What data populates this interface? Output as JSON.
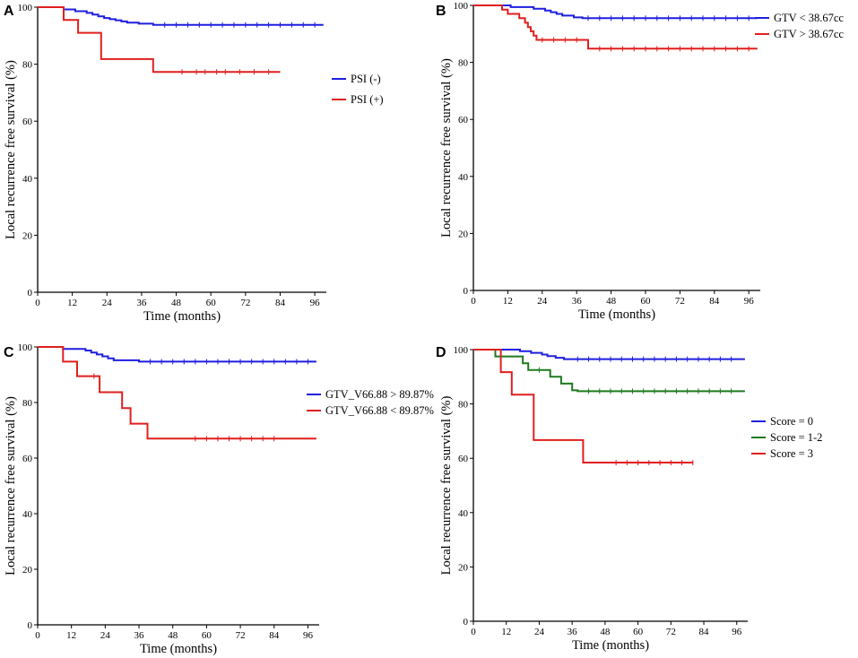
{
  "figure": {
    "panels": [
      "A",
      "B",
      "C",
      "D"
    ]
  },
  "chart_data": [
    {
      "panel": "A",
      "type": "line",
      "subtype": "kaplan-meier",
      "xlabel": "Time (months)",
      "ylabel": "Local recurrence free survival (%)",
      "xlim": [
        0,
        100
      ],
      "ylim": [
        0,
        100
      ],
      "xticks": [
        0,
        12,
        24,
        36,
        48,
        60,
        72,
        84,
        96
      ],
      "yticks": [
        0,
        20,
        40,
        60,
        80,
        100
      ],
      "legend_position": "right",
      "series": [
        {
          "name": "PSI (-)",
          "color": "#1f1fe0",
          "steps": [
            [
              0,
              100
            ],
            [
              9,
              99.2
            ],
            [
              13,
              98.6
            ],
            [
              17,
              98
            ],
            [
              19,
              97.4
            ],
            [
              21,
              96.8
            ],
            [
              23,
              96.2
            ],
            [
              25,
              95.8
            ],
            [
              27,
              95.4
            ],
            [
              29,
              95
            ],
            [
              31,
              94.6
            ],
            [
              35,
              94.2
            ],
            [
              40,
              93.8
            ],
            [
              99,
              93.8
            ]
          ],
          "censor": [
            44,
            48,
            52,
            56,
            60,
            64,
            68,
            72,
            76,
            80,
            84,
            88,
            92,
            96
          ]
        },
        {
          "name": "PSI (+)",
          "color": "#e01f1f",
          "steps": [
            [
              0,
              100
            ],
            [
              9,
              95.5
            ],
            [
              14,
              91
            ],
            [
              22,
              81.8
            ],
            [
              40,
              77.3
            ],
            [
              84,
              77.3
            ]
          ],
          "censor": [
            50,
            55,
            58,
            62,
            65,
            70,
            75,
            80
          ]
        }
      ]
    },
    {
      "panel": "B",
      "type": "line",
      "subtype": "kaplan-meier",
      "xlabel": "Time (months)",
      "ylabel": "Local recurrence free survival (%)",
      "xlim": [
        0,
        100
      ],
      "ylim": [
        0,
        100
      ],
      "xticks": [
        0,
        12,
        24,
        36,
        48,
        60,
        72,
        84,
        96
      ],
      "yticks": [
        0,
        20,
        40,
        60,
        80,
        100
      ],
      "legend_position": "top-right",
      "series": [
        {
          "name": "GTV < 38.67cc",
          "color": "#1f1fe0",
          "steps": [
            [
              0,
              100
            ],
            [
              13,
              99.4
            ],
            [
              21,
              98.8
            ],
            [
              25,
              98.2
            ],
            [
              27,
              97.6
            ],
            [
              29,
              97
            ],
            [
              31,
              96.4
            ],
            [
              35,
              95.8
            ],
            [
              38,
              95.5
            ],
            [
              99,
              95.5
            ]
          ],
          "censor": [
            40,
            44,
            48,
            52,
            56,
            60,
            64,
            68,
            72,
            76,
            80,
            84,
            88,
            92,
            96
          ]
        },
        {
          "name": "GTV > 38.67cc",
          "color": "#e01f1f",
          "steps": [
            [
              0,
              100
            ],
            [
              10,
              98.5
            ],
            [
              12,
              97
            ],
            [
              16,
              95.5
            ],
            [
              18,
              93.9
            ],
            [
              19,
              92.4
            ],
            [
              20,
              90.9
            ],
            [
              21,
              89.4
            ],
            [
              22,
              87.9
            ],
            [
              40,
              84.8
            ],
            [
              99,
              84.8
            ]
          ],
          "censor": [
            24,
            28,
            32,
            36,
            44,
            48,
            52,
            56,
            60,
            64,
            68,
            72,
            76,
            80,
            84,
            88,
            92,
            96
          ]
        }
      ]
    },
    {
      "panel": "C",
      "type": "line",
      "subtype": "kaplan-meier",
      "xlabel": "Time (months)",
      "ylabel": "Local recurrence free survival (%)",
      "xlim": [
        0,
        100
      ],
      "ylim": [
        0,
        100
      ],
      "xticks": [
        0,
        12,
        24,
        36,
        48,
        60,
        72,
        84,
        96
      ],
      "yticks": [
        0,
        20,
        40,
        60,
        80,
        100
      ],
      "legend_position": "right",
      "series": [
        {
          "name": "GTV_V66.88 > 89.87%",
          "color": "#1f1fe0",
          "steps": [
            [
              0,
              100
            ],
            [
              9,
              99.3
            ],
            [
              17,
              98.7
            ],
            [
              19,
              98
            ],
            [
              21,
              97.3
            ],
            [
              23,
              96.6
            ],
            [
              25,
              95.9
            ],
            [
              27,
              95.2
            ],
            [
              36,
              94.7
            ],
            [
              99,
              94.7
            ]
          ],
          "censor": [
            40,
            44,
            48,
            52,
            56,
            60,
            64,
            68,
            72,
            76,
            80,
            84,
            88,
            92,
            96
          ]
        },
        {
          "name": "GTV_V66.88 < 89.87%",
          "color": "#e01f1f",
          "steps": [
            [
              0,
              100
            ],
            [
              9,
              94.7
            ],
            [
              14,
              89.5
            ],
            [
              22,
              83.7
            ],
            [
              30,
              78
            ],
            [
              33,
              72.4
            ],
            [
              39,
              67
            ],
            [
              99,
              67
            ]
          ],
          "censor": [
            20,
            56,
            60,
            64,
            68,
            72,
            76,
            80,
            84
          ]
        }
      ]
    },
    {
      "panel": "D",
      "type": "line",
      "subtype": "kaplan-meier",
      "xlabel": "Time (months)",
      "ylabel": "Local recurrence free survival (%)",
      "xlim": [
        0,
        100
      ],
      "ylim": [
        0,
        100
      ],
      "xticks": [
        0,
        12,
        24,
        36,
        48,
        60,
        72,
        84,
        96
      ],
      "yticks": [
        0,
        20,
        40,
        60,
        80,
        100
      ],
      "legend_position": "right",
      "series": [
        {
          "name": "Score = 0",
          "color": "#1f1fe0",
          "steps": [
            [
              0,
              100
            ],
            [
              17,
              99.4
            ],
            [
              21,
              98.8
            ],
            [
              25,
              98.2
            ],
            [
              27,
              97.6
            ],
            [
              30,
              97
            ],
            [
              33,
              96.5
            ],
            [
              99,
              96.5
            ]
          ],
          "censor": [
            38,
            42,
            46,
            50,
            54,
            58,
            62,
            66,
            70,
            74,
            78,
            82,
            86,
            90,
            94
          ]
        },
        {
          "name": "Score = 1-2",
          "color": "#1e7a1e",
          "steps": [
            [
              0,
              100
            ],
            [
              8,
              97.5
            ],
            [
              18,
              95
            ],
            [
              20,
              92.5
            ],
            [
              28,
              90
            ],
            [
              32,
              87.5
            ],
            [
              36,
              85
            ],
            [
              38,
              84.7
            ],
            [
              99,
              84.7
            ]
          ],
          "censor": [
            24,
            42,
            46,
            50,
            54,
            58,
            62,
            66,
            70,
            74,
            78,
            82,
            86,
            90,
            94
          ]
        },
        {
          "name": "Score = 3",
          "color": "#e01f1f",
          "steps": [
            [
              0,
              100
            ],
            [
              10,
              91.7
            ],
            [
              14,
              83.4
            ],
            [
              22,
              66.7
            ],
            [
              40,
              58.4
            ],
            [
              80,
              58.4
            ]
          ],
          "censor": [
            52,
            56,
            60,
            64,
            68,
            72,
            76,
            80
          ]
        }
      ]
    }
  ]
}
